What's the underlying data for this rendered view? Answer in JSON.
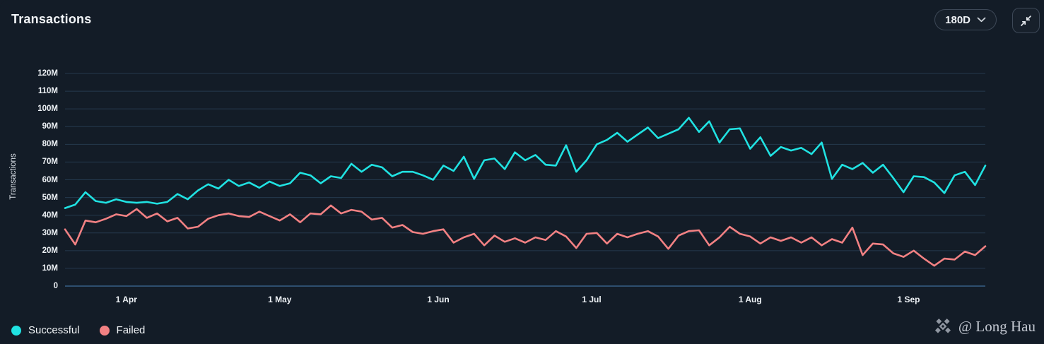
{
  "header": {
    "title": "Transactions",
    "range_button": {
      "label": "180D"
    }
  },
  "y_axis_title": "Transactions",
  "chart_data": {
    "type": "line",
    "title": "Transactions",
    "ylabel": "Transactions",
    "grid": "horizontal",
    "legend_position": "bottom-left",
    "y_max": 120,
    "y_unit": "M",
    "y_ticks": [
      "0",
      "10M",
      "20M",
      "30M",
      "40M",
      "50M",
      "60M",
      "70M",
      "80M",
      "90M",
      "100M",
      "110M",
      "120M"
    ],
    "span_days": 180,
    "sample_interval_days": 2,
    "x_start": "20 Mar",
    "x_end": "16 Sep",
    "x_ticks": [
      {
        "label": "1 Apr",
        "day": 12
      },
      {
        "label": "1 May",
        "day": 42
      },
      {
        "label": "1 Jun",
        "day": 73
      },
      {
        "label": "1 Jul",
        "day": 103
      },
      {
        "label": "1 Aug",
        "day": 134
      },
      {
        "label": "1 Sep",
        "day": 165
      }
    ],
    "series": [
      {
        "name": "Successful",
        "color": "#20e2e2",
        "unit": "M",
        "values": [
          44,
          46,
          53,
          48,
          47,
          49,
          47.5,
          47,
          47.5,
          46.5,
          47.5,
          52,
          49,
          54,
          57.5,
          55,
          60,
          56.5,
          58.5,
          55.5,
          59,
          56.5,
          58,
          64,
          62.5,
          58,
          62,
          61,
          69,
          64.5,
          68.5,
          67,
          62,
          64.5,
          64.5,
          62.5,
          60,
          68,
          65,
          73,
          60.5,
          71,
          72,
          66,
          75.5,
          71,
          74,
          68.5,
          68,
          79.5,
          64.5,
          71,
          80,
          82.5,
          86.5,
          81.5,
          85.5,
          89.5,
          83.5,
          86,
          88.5,
          95,
          87,
          93,
          81,
          88.5,
          89,
          77.5,
          84,
          73.5,
          78.5,
          76.5,
          78,
          74.5,
          81,
          60.5,
          68.5,
          66,
          69.5,
          64,
          68.5,
          61,
          53,
          62,
          61.5,
          58.5,
          52.5,
          62.5,
          64.5,
          57,
          68
        ]
      },
      {
        "name": "Failed",
        "color": "#f28183",
        "unit": "M",
        "values": [
          32,
          23.5,
          37,
          36,
          38,
          40.5,
          39.5,
          43.5,
          38.5,
          41,
          36.5,
          38.5,
          32.5,
          33.5,
          38,
          40,
          41,
          39.5,
          39,
          42,
          39.5,
          37,
          40.5,
          36,
          41,
          40.5,
          45.5,
          41,
          43,
          42,
          37.5,
          38.5,
          33,
          34.5,
          30.5,
          29.5,
          31,
          32,
          24.5,
          27.5,
          29.5,
          23,
          28.5,
          25,
          27,
          24.5,
          27.5,
          26,
          31,
          28,
          21.5,
          29.5,
          30,
          24,
          29.5,
          27.5,
          29.5,
          31,
          28,
          21,
          28.5,
          31,
          31.5,
          23,
          27.5,
          33.5,
          29.5,
          28,
          24,
          27.5,
          25.5,
          27.5,
          24.5,
          27.5,
          23,
          26.5,
          24.5,
          33,
          17.5,
          24,
          23.5,
          18.5,
          16.5,
          20,
          15.5,
          11.5,
          15.5,
          15,
          19.5,
          17.5,
          22.5
        ]
      }
    ]
  },
  "legend": {
    "items": [
      {
        "label": "Successful",
        "color": "#20e2e2"
      },
      {
        "label": "Failed",
        "color": "#f28183"
      }
    ]
  },
  "watermark": {
    "text": "@ Long Hau"
  },
  "colors": {
    "background": "#131c27",
    "grid": "#24394e",
    "grid_zero": "#2e4e6e",
    "axis_text": "#eef2f6",
    "button_border": "#3d4857",
    "watermark_text": "#c3c8d1",
    "watermark_icon": "#8f96a1"
  }
}
